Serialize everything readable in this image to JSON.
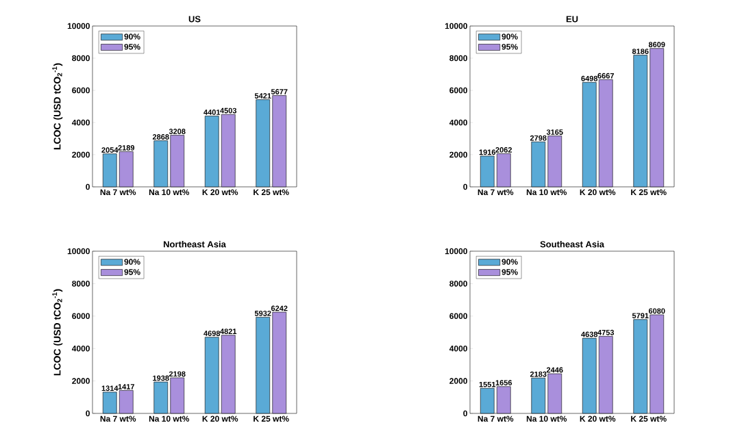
{
  "chart_data": [
    {
      "type": "bar",
      "title": "US",
      "ylabel": "LCOC (USD tCO$_{2}$$^{-1}$)",
      "categories": [
        "Na 7 wt%",
        "Na 10 wt%",
        "K 20 wt%",
        "K 25 wt%"
      ],
      "series": [
        {
          "name": "90%",
          "color": "#5aaad6",
          "values": [
            2054,
            2868,
            4401,
            5421
          ]
        },
        {
          "name": "95%",
          "color": "#a98fdc",
          "values": [
            2189,
            3208,
            4503,
            5677
          ]
        }
      ],
      "ylim": [
        0,
        10000
      ],
      "yticks": [
        0,
        2000,
        4000,
        6000,
        8000,
        10000
      ],
      "data_labels": true,
      "legend": "top left"
    },
    {
      "type": "bar",
      "title": "EU",
      "categories": [
        "Na 7 wt%",
        "Na 10 wt%",
        "K 20 wt%",
        "K 25 wt%"
      ],
      "series": [
        {
          "name": "90%",
          "color": "#5aaad6",
          "values": [
            1916,
            2798,
            6498,
            8186
          ]
        },
        {
          "name": "95%",
          "color": "#a98fdc",
          "values": [
            2062,
            3165,
            6667,
            8609
          ]
        }
      ],
      "ylim": [
        0,
        10000
      ],
      "yticks": [
        0,
        2000,
        4000,
        6000,
        8000,
        10000
      ],
      "data_labels": true,
      "legend": "top left"
    },
    {
      "type": "bar",
      "title": "Northeast Asia",
      "ylabel": "LCOC (USD tCO$_{2}$$^{-1}$)",
      "categories": [
        "Na 7 wt%",
        "Na 10 wt%",
        "K 20 wt%",
        "K 25 wt%"
      ],
      "series": [
        {
          "name": "90%",
          "color": "#5aaad6",
          "values": [
            1314,
            1938,
            4698,
            5932
          ]
        },
        {
          "name": "95%",
          "color": "#a98fdc",
          "values": [
            1417,
            2198,
            4821,
            6242
          ]
        }
      ],
      "ylim": [
        0,
        10000
      ],
      "yticks": [
        0,
        2000,
        4000,
        6000,
        8000,
        10000
      ],
      "data_labels": true,
      "legend": "top left"
    },
    {
      "type": "bar",
      "title": "Southeast Asia",
      "categories": [
        "Na 7 wt%",
        "Na 10 wt%",
        "K 20 wt%",
        "K 25 wt%"
      ],
      "series": [
        {
          "name": "90%",
          "color": "#5aaad6",
          "values": [
            1551,
            2183,
            4638,
            5791
          ]
        },
        {
          "name": "95%",
          "color": "#a98fdc",
          "values": [
            1656,
            2446,
            4753,
            6080
          ]
        }
      ],
      "ylim": [
        0,
        10000
      ],
      "yticks": [
        0,
        2000,
        4000,
        6000,
        8000,
        10000
      ],
      "data_labels": true,
      "legend": "top left"
    }
  ]
}
